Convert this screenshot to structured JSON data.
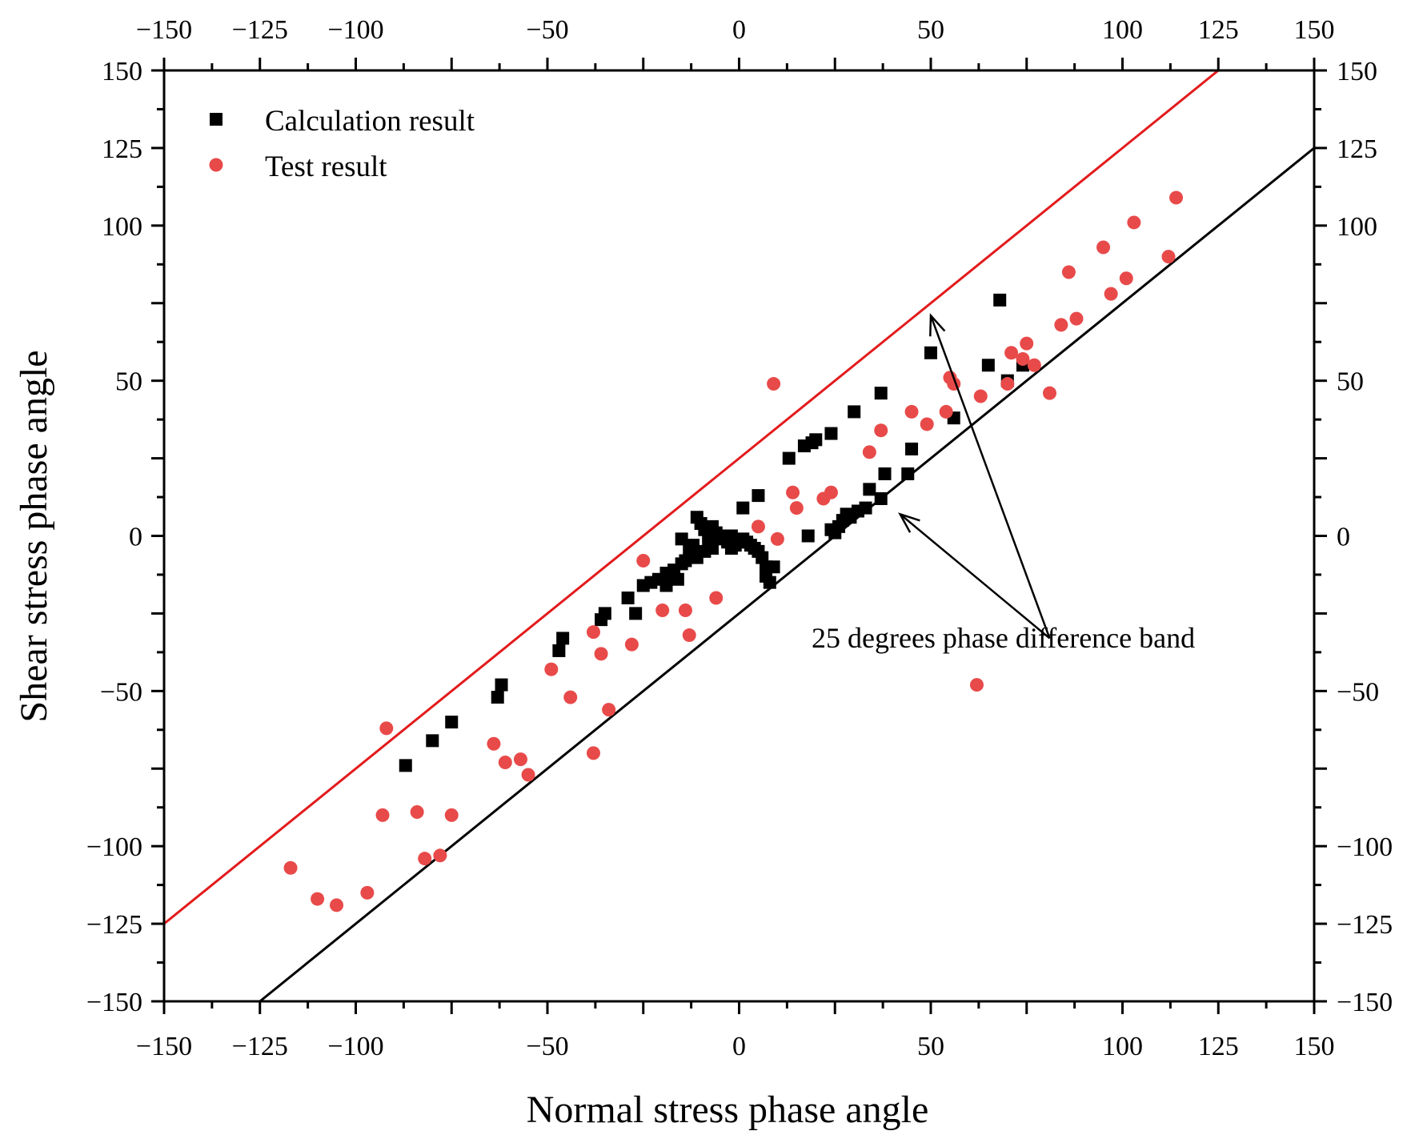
{
  "chart_data": {
    "type": "scatter",
    "xlabel": "Normal stress phase angle",
    "ylabel": "Shear stress phase angle",
    "xlim": [
      -150,
      150
    ],
    "ylim": [
      -150,
      150
    ],
    "xticks": [
      -150,
      -125,
      -100,
      -50,
      0,
      50,
      100,
      125,
      150
    ],
    "yticks": [
      -150,
      -125,
      -100,
      -50,
      0,
      50,
      100,
      125,
      150
    ],
    "xtick_labels": [
      "−150",
      "−125",
      "−100",
      "−50",
      "0",
      "50",
      "100",
      "125",
      "150"
    ],
    "ytick_labels": [
      "−150",
      "−125",
      "−100",
      "−50",
      "0",
      "50",
      "100",
      "125",
      "150"
    ],
    "mirror_axes": true,
    "grid": false,
    "legend_position": "top-left",
    "series": [
      {
        "name": "Calculation result",
        "marker": "square",
        "color": "#000000",
        "points": [
          [
            -87,
            -74
          ],
          [
            -80,
            -66
          ],
          [
            -75,
            -60
          ],
          [
            -63,
            -52
          ],
          [
            -62,
            -48
          ],
          [
            -47,
            -37
          ],
          [
            -46,
            -33
          ],
          [
            -36,
            -27
          ],
          [
            -35,
            -25
          ],
          [
            -29,
            -20
          ],
          [
            -27,
            -25
          ],
          [
            -25,
            -16
          ],
          [
            -23,
            -15
          ],
          [
            -21,
            -14
          ],
          [
            -19,
            -16
          ],
          [
            -19,
            -12
          ],
          [
            -17,
            -11
          ],
          [
            -16,
            -14
          ],
          [
            -15,
            -9
          ],
          [
            -15,
            -1
          ],
          [
            -14,
            -8
          ],
          [
            -13,
            -5
          ],
          [
            -12,
            -3
          ],
          [
            -11,
            -7
          ],
          [
            -11,
            6
          ],
          [
            -10,
            4
          ],
          [
            -9,
            -5
          ],
          [
            -9,
            2
          ],
          [
            -8,
            -2
          ],
          [
            -7,
            3
          ],
          [
            -7,
            -4
          ],
          [
            -6,
            1
          ],
          [
            -5,
            -1
          ],
          [
            -4,
            0
          ],
          [
            -3,
            -2
          ],
          [
            -2,
            0
          ],
          [
            -1,
            -3
          ],
          [
            0,
            -2
          ],
          [
            1,
            -1
          ],
          [
            2,
            -2
          ],
          [
            3,
            -3
          ],
          [
            4,
            -4
          ],
          [
            5,
            -5
          ],
          [
            6,
            -7
          ],
          [
            7,
            -10
          ],
          [
            7,
            -13
          ],
          [
            8,
            -15
          ],
          [
            9,
            -10
          ],
          [
            1,
            9
          ],
          [
            -2,
            -4
          ],
          [
            5,
            13
          ],
          [
            13,
            25
          ],
          [
            17,
            29
          ],
          [
            19,
            30
          ],
          [
            20,
            31
          ],
          [
            24,
            33
          ],
          [
            30,
            40
          ],
          [
            37,
            46
          ],
          [
            18,
            0
          ],
          [
            24,
            2
          ],
          [
            25,
            1
          ],
          [
            26,
            3
          ],
          [
            27,
            5
          ],
          [
            28,
            7
          ],
          [
            29,
            6
          ],
          [
            31,
            8
          ],
          [
            33,
            9
          ],
          [
            34,
            15
          ],
          [
            37,
            12
          ],
          [
            38,
            20
          ],
          [
            44,
            20
          ],
          [
            45,
            28
          ],
          [
            50,
            59
          ],
          [
            56,
            38
          ],
          [
            65,
            55
          ],
          [
            68,
            76
          ],
          [
            70,
            50
          ],
          [
            74,
            55
          ]
        ]
      },
      {
        "name": "Test result",
        "marker": "circle",
        "color": "#e84a4a",
        "points": [
          [
            -117,
            -107
          ],
          [
            -110,
            -117
          ],
          [
            -105,
            -119
          ],
          [
            -97,
            -115
          ],
          [
            -93,
            -90
          ],
          [
            -92,
            -62
          ],
          [
            -84,
            -89
          ],
          [
            -82,
            -104
          ],
          [
            -78,
            -103
          ],
          [
            -75,
            -90
          ],
          [
            -64,
            -67
          ],
          [
            -61,
            -73
          ],
          [
            -57,
            -72
          ],
          [
            -55,
            -77
          ],
          [
            -49,
            -43
          ],
          [
            -44,
            -52
          ],
          [
            -38,
            -31
          ],
          [
            -38,
            -70
          ],
          [
            -36,
            -38
          ],
          [
            -34,
            -56
          ],
          [
            -28,
            -35
          ],
          [
            -25,
            -8
          ],
          [
            -20,
            -24
          ],
          [
            -14,
            -24
          ],
          [
            -13,
            -32
          ],
          [
            -6,
            -20
          ],
          [
            5,
            3
          ],
          [
            9,
            49
          ],
          [
            10,
            -1
          ],
          [
            14,
            14
          ],
          [
            15,
            9
          ],
          [
            22,
            12
          ],
          [
            24,
            14
          ],
          [
            34,
            27
          ],
          [
            37,
            34
          ],
          [
            45,
            40
          ],
          [
            49,
            36
          ],
          [
            54,
            40
          ],
          [
            55,
            51
          ],
          [
            56,
            49
          ],
          [
            62,
            -48
          ],
          [
            63,
            45
          ],
          [
            70,
            49
          ],
          [
            71,
            59
          ],
          [
            74,
            57
          ],
          [
            75,
            62
          ],
          [
            77,
            55
          ],
          [
            81,
            46
          ],
          [
            84,
            68
          ],
          [
            86,
            85
          ],
          [
            88,
            70
          ],
          [
            95,
            93
          ],
          [
            97,
            78
          ],
          [
            101,
            83
          ],
          [
            103,
            101
          ],
          [
            112,
            90
          ],
          [
            114,
            109
          ]
        ]
      }
    ],
    "reference_lines": [
      {
        "color": "#e31a1c",
        "from": [
          -150,
          -125
        ],
        "to": [
          125,
          150
        ]
      },
      {
        "color": "#000000",
        "from": [
          -125,
          -150
        ],
        "to": [
          150,
          125
        ]
      }
    ],
    "annotations": [
      {
        "text": "25 degrees phase difference band",
        "at": [
          81,
          -33
        ],
        "arrows_to": [
          [
            50,
            71
          ],
          [
            42,
            7
          ]
        ]
      }
    ]
  }
}
